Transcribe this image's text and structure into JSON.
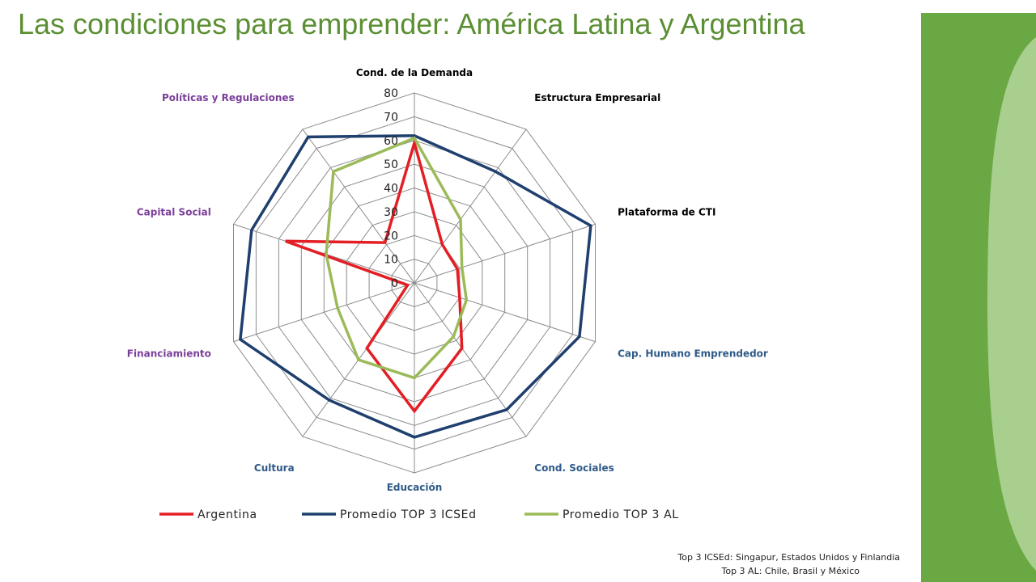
{
  "title": "Las condiciones para emprender: América Latina y Argentina",
  "chart_data": {
    "type": "radar",
    "axes": [
      "Cond. de la Demanda",
      "Estructura Empresarial",
      "Plataforma de CTI",
      "Cap. Humano Emprendedor",
      "Cond. Sociales",
      "Educación",
      "Cultura",
      "Financiamiento",
      "Capital Social",
      "Políticas y Regulaciones"
    ],
    "axis_label_colors": [
      "#000000",
      "#000000",
      "#000000",
      "#2e5a87",
      "#2e5a87",
      "#2e5a87",
      "#2e5a87",
      "#7b3f9a",
      "#7b3f9a",
      "#7b3f9a"
    ],
    "ticks": [
      "0",
      "10",
      "20",
      "30",
      "40",
      "50",
      "60",
      "70",
      "80"
    ],
    "rlim": [
      0,
      80
    ],
    "series": [
      {
        "name": "Argentina",
        "color": "#e31e24",
        "values": [
          59,
          20,
          19,
          20,
          34,
          54,
          34,
          3,
          57,
          21
        ]
      },
      {
        "name": "Promedio TOP 3 ICSEd",
        "color": "#1f3f6e",
        "values": [
          62,
          58,
          78,
          73,
          66,
          65,
          61,
          77,
          72,
          76
        ]
      },
      {
        "name": "Promedio TOP 3 AL",
        "color": "#9bbb59",
        "values": [
          61,
          33,
          21,
          23,
          28,
          40,
          40,
          34,
          39,
          58
        ]
      }
    ],
    "legend_position": "bottom",
    "grid": true
  },
  "notes": [
    "Top 3 ICSEd: Singapur, Estados Unidos y Finlandia",
    "Top 3 AL: Chile, Brasil y México"
  ]
}
